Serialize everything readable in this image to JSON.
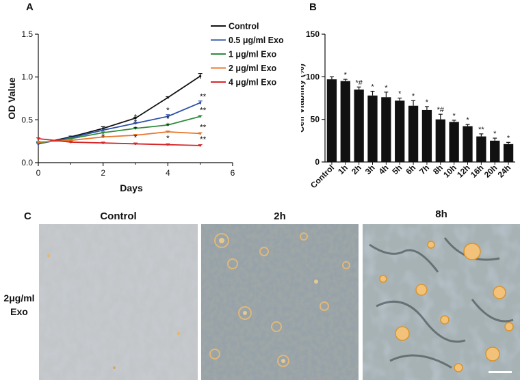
{
  "panels": {
    "a_label": "A",
    "b_label": "B",
    "c_label": "C"
  },
  "chart_data": [
    {
      "type": "line",
      "title": "",
      "xlabel": "Days",
      "ylabel": "OD Value",
      "xlim": [
        0,
        6
      ],
      "ylim": [
        0,
        1.5
      ],
      "xticks": [
        "0",
        "2",
        "4",
        "6"
      ],
      "yticks": [
        "0.0",
        "0.5",
        "1.0",
        "1.5"
      ],
      "x": [
        0,
        1,
        2,
        3,
        4,
        5
      ],
      "legend_position": "top-right",
      "series": [
        {
          "name": "Control",
          "color": "#111111",
          "values": [
            0.22,
            0.3,
            0.4,
            0.52,
            0.76,
            1.01
          ],
          "errors": [
            0.01,
            0.01,
            0.02,
            0.01,
            0.01,
            0.03
          ],
          "annotations": [
            "",
            "",
            "",
            "",
            "",
            ""
          ]
        },
        {
          "name": "0.5 μg/ml Exo",
          "color": "#2b4fa8",
          "values": [
            0.22,
            0.29,
            0.38,
            0.46,
            0.54,
            0.7
          ],
          "errors": [
            0.01,
            0.01,
            0.01,
            0.01,
            0.02,
            0.02
          ],
          "annotations": [
            "",
            "",
            "",
            "*",
            "*",
            "**"
          ]
        },
        {
          "name": "1 μg/ml Exo",
          "color": "#2e8b3a",
          "values": [
            0.23,
            0.28,
            0.35,
            0.4,
            0.44,
            0.54
          ],
          "errors": [
            0.01,
            0.01,
            0.01,
            0.01,
            0.01,
            0.01
          ],
          "annotations": [
            "",
            "",
            "",
            "*",
            "*",
            "**"
          ]
        },
        {
          "name": "2 μg/ml Exo",
          "color": "#e8742a",
          "values": [
            0.24,
            0.26,
            0.3,
            0.32,
            0.36,
            0.34
          ],
          "errors": [
            0.01,
            0.01,
            0.01,
            0.01,
            0.01,
            0.01
          ],
          "annotations": [
            "",
            "",
            "",
            "*",
            "*",
            "**"
          ]
        },
        {
          "name": "4 μg/ml Exo",
          "color": "#d62728",
          "values": [
            0.28,
            0.24,
            0.23,
            0.22,
            0.21,
            0.2
          ],
          "errors": [
            0.01,
            0.01,
            0.01,
            0.01,
            0.01,
            0.01
          ],
          "annotations": [
            "",
            "",
            "*",
            "*",
            "*",
            "**"
          ]
        }
      ]
    },
    {
      "type": "bar",
      "title": "",
      "xlabel": "",
      "ylabel": "Cell Viability (%)",
      "ylim": [
        0,
        150
      ],
      "yticks": [
        "0",
        "50",
        "100",
        "150"
      ],
      "categories": [
        "Control",
        "1h",
        "2h",
        "3h",
        "4h",
        "5h",
        "6h",
        "7h",
        "8h",
        "10h",
        "12h",
        "16h",
        "20h",
        "24h"
      ],
      "values": [
        97,
        95,
        85,
        78,
        76,
        72,
        66,
        61,
        50,
        47,
        42,
        30,
        25,
        21
      ],
      "errors": [
        3,
        2,
        3,
        5,
        6,
        3,
        6,
        4,
        6,
        2,
        2,
        3,
        3,
        2
      ],
      "annotations": [
        "",
        "*",
        "*#",
        "*",
        "*",
        "*",
        "*",
        "*",
        "*#",
        "*",
        "*",
        "**",
        "*",
        "*"
      ],
      "color": "#111111"
    }
  ],
  "micrographs": {
    "titles": [
      "Control",
      "2h",
      "8h"
    ],
    "row_label_line1": "2μg/ml",
    "row_label_line2": "Exo"
  }
}
